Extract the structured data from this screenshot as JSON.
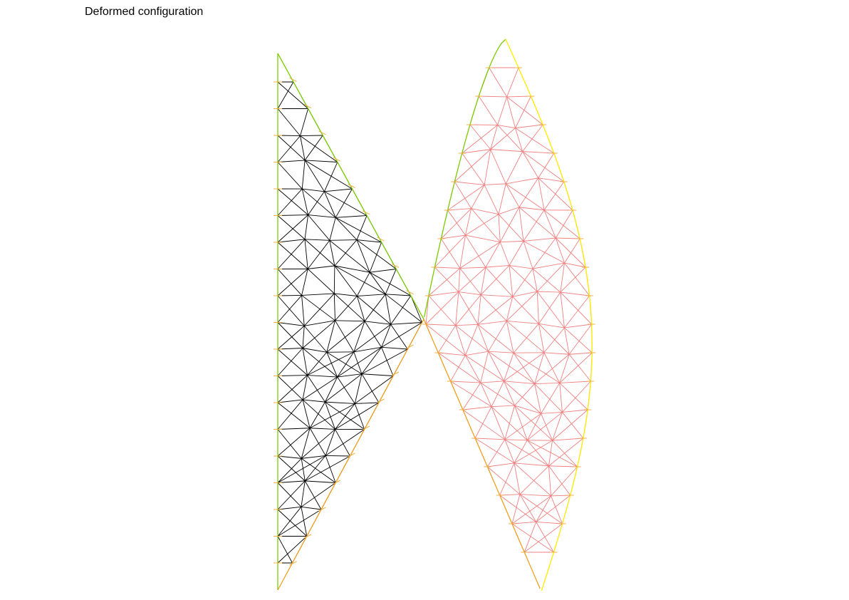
{
  "title": "Deformed configuration",
  "colors": {
    "reference_mesh": "#000000",
    "deformed_mesh": "#f08080",
    "boundary_green": "#7ccd00",
    "boundary_orange": "#f0a020",
    "boundary_yellow": "#ffee00",
    "tick": "#f0b040"
  }
}
